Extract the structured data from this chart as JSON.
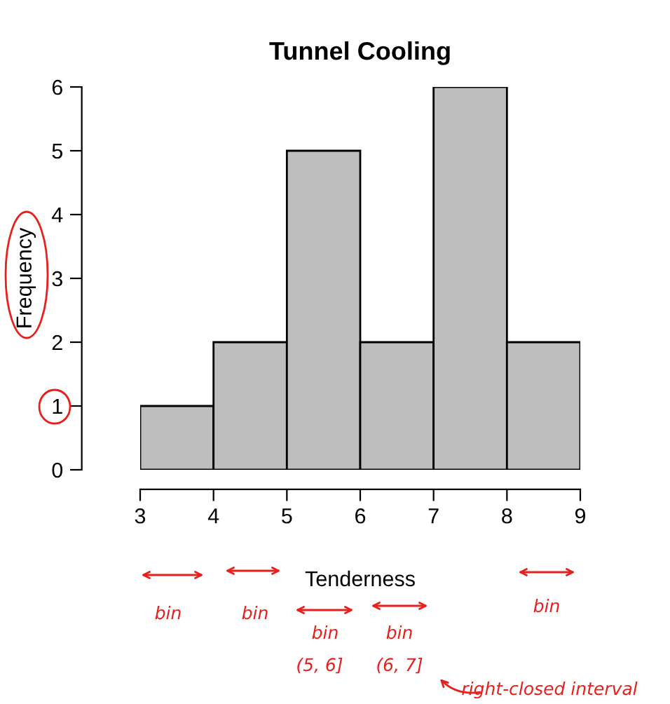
{
  "chart_data": {
    "type": "histogram",
    "title": "Tunnel Cooling",
    "xlabel": "Tenderness",
    "ylabel": "Frequency",
    "bins": [
      3,
      4,
      5,
      6,
      7,
      8,
      9
    ],
    "values": [
      1,
      2,
      5,
      2,
      6,
      2
    ],
    "color": "#bebebe",
    "xlim": [
      3,
      9
    ],
    "xticks": [
      3,
      4,
      5,
      6,
      7,
      8,
      9
    ],
    "ylim": [
      0,
      6
    ],
    "yticks": [
      0,
      1,
      2,
      3,
      4,
      5,
      6
    ],
    "grid": false,
    "legend": false,
    "annotations": [
      "bin",
      "bin",
      "bin",
      "bin",
      "bin",
      "(5, 6]",
      "(6, 7]",
      "right-closed interval"
    ]
  }
}
